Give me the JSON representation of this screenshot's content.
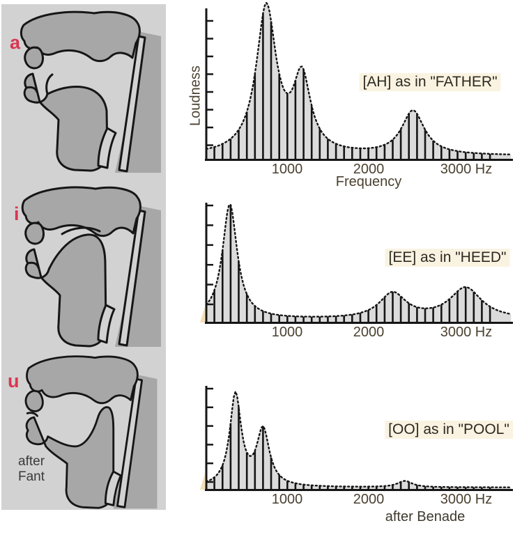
{
  "figure": {
    "left_panel": {
      "bg_color": "#d2d2d2",
      "vowel_color": "#db3550",
      "vowels": [
        {
          "label": "a"
        },
        {
          "label": "i"
        },
        {
          "label": "u"
        }
      ],
      "credit_lines": [
        "after",
        "Fant"
      ]
    }
  },
  "chart_data": [
    {
      "type": "bar",
      "annotation": "[AH] as in \"FATHER\"",
      "ylabel": "Loudness",
      "xlabel": "Frequency",
      "x_unit": "Hz",
      "x_tick_labels": [
        "1000",
        "2000",
        "3000 Hz"
      ],
      "x_ticks_hz": [
        1000,
        2000,
        3000
      ],
      "xlim_hz": [
        0,
        3800
      ],
      "grid": false,
      "harmonic_spacing_hz": 100,
      "formants_hz": [
        {
          "name": "F1",
          "freq": 740,
          "rel_amplitude": 1.0,
          "bandwidth": 150
        },
        {
          "name": "F2",
          "freq": 1180,
          "rel_amplitude": 0.5,
          "bandwidth": 130
        },
        {
          "name": "F3",
          "freq": 2550,
          "rel_amplitude": 0.3,
          "bandwidth": 170
        }
      ],
      "noise_floor": 0.02
    },
    {
      "type": "bar",
      "annotation": "[EE] as in \"HEED\"",
      "x_tick_labels": [
        "1000",
        "2000",
        "3000 Hz"
      ],
      "x_ticks_hz": [
        1000,
        2000,
        3000
      ],
      "xlim_hz": [
        0,
        3800
      ],
      "grid": false,
      "harmonic_spacing_hz": 100,
      "formants_hz": [
        {
          "name": "F1",
          "freq": 290,
          "rel_amplitude": 1.0,
          "bandwidth": 110
        },
        {
          "name": "F2",
          "freq": 2300,
          "rel_amplitude": 0.22,
          "bandwidth": 200
        },
        {
          "name": "F3",
          "freq": 3200,
          "rel_amplitude": 0.27,
          "bandwidth": 240
        }
      ],
      "noise_floor": 0.02
    },
    {
      "type": "bar",
      "annotation": "[OO] as in \"POOL\"",
      "credit": "after Benade",
      "x_tick_labels": [
        "1000",
        "2000",
        "3000 Hz"
      ],
      "x_ticks_hz": [
        1000,
        2000,
        3000
      ],
      "xlim_hz": [
        0,
        3800
      ],
      "grid": false,
      "harmonic_spacing_hz": 100,
      "formants_hz": [
        {
          "name": "F1",
          "freq": 360,
          "rel_amplitude": 0.95,
          "bandwidth": 85
        },
        {
          "name": "F2",
          "freq": 700,
          "rel_amplitude": 0.58,
          "bandwidth": 95
        },
        {
          "name": "F3",
          "freq": 2450,
          "rel_amplitude": 0.065,
          "bandwidth": 110
        }
      ],
      "noise_floor": 0.015
    }
  ]
}
